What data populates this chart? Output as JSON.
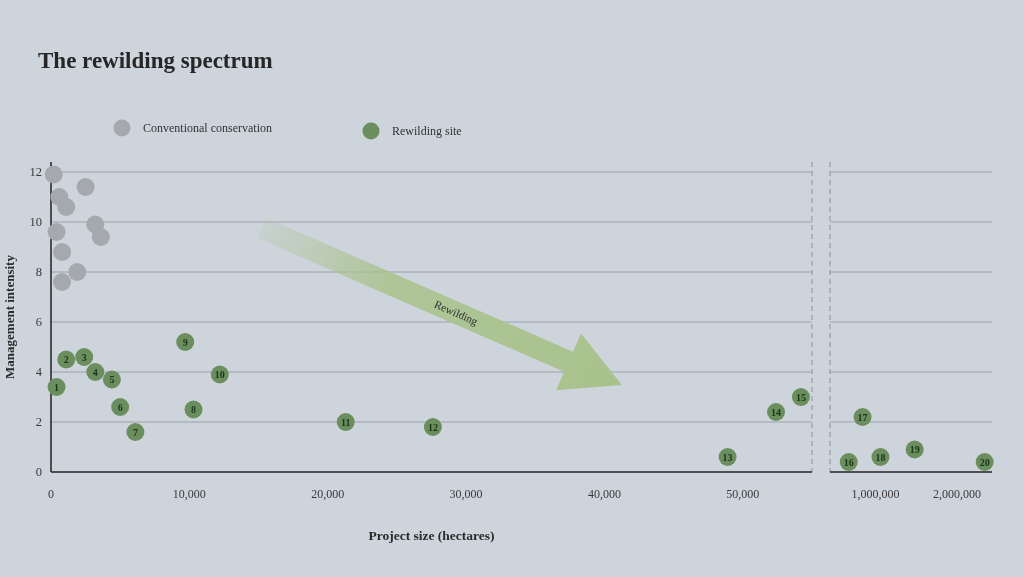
{
  "chart_data": [
    {
      "type": "scatter",
      "title": "The rewilding spectrum",
      "xlabel": "Project size (hectares)",
      "ylabel": "Management intensity",
      "annotations": [
        "Rewilding",
        {
          "text": "1",
          "x": 400,
          "y": 3.4
        },
        {
          "text": "2",
          "x": 1100,
          "y": 4.5
        },
        {
          "text": "3",
          "x": 2400,
          "y": 4.6
        },
        {
          "text": "4",
          "x": 3200,
          "y": 4.0
        },
        {
          "text": "5",
          "x": 4400,
          "y": 3.7
        },
        {
          "text": "6",
          "x": 5000,
          "y": 2.6
        },
        {
          "text": "7",
          "x": 6100,
          "y": 1.6
        },
        {
          "text": "8",
          "x": 10300,
          "y": 2.5
        },
        {
          "text": "9",
          "x": 9700,
          "y": 5.2
        },
        {
          "text": "10",
          "x": 12200,
          "y": 3.9
        },
        {
          "text": "11",
          "x": 21300,
          "y": 2.0
        },
        {
          "text": "12",
          "x": 27600,
          "y": 1.8
        },
        {
          "text": "13",
          "x": 48900,
          "y": 0.6
        },
        {
          "text": "14",
          "x": 52400,
          "y": 2.4
        },
        {
          "text": "15",
          "x": 54200,
          "y": 3.0
        }
      ],
      "xlim": [
        0,
        55000
      ],
      "xticks": [
        0,
        {
          "value": 10000,
          "label": "10,000"
        },
        {
          "value": 20000,
          "label": "20,000"
        },
        {
          "value": 30000,
          "label": "30,000"
        },
        {
          "value": 40000,
          "label": "40,000"
        },
        {
          "value": 50000,
          "label": "50,000"
        }
      ],
      "ylim": [
        0,
        12.4
      ],
      "yticks": [
        0,
        2,
        4,
        6,
        8,
        10,
        12
      ],
      "grid": "y",
      "legend": "top",
      "marker": "circle",
      "ref_lines": [
        {
          "axis": "x",
          "value": 55000,
          "line_style": "dashed",
          "color": "#8a9199"
        }
      ],
      "series": [
        {
          "name": "Conventional conservation",
          "color": "#a5a9ad",
          "x": [
            200,
            2500,
            600,
            1100,
            3200,
            400,
            3600,
            800,
            1900,
            800
          ],
          "values": [
            11.9,
            11.4,
            11.0,
            10.6,
            9.9,
            9.6,
            9.4,
            8.8,
            8.0,
            7.6
          ]
        },
        {
          "name": "Rewilding site",
          "color": "#6b8e5e",
          "x": [
            400,
            1100,
            2400,
            3200,
            4400,
            5000,
            6100,
            10300,
            9700,
            12200,
            21300,
            27600,
            48900,
            52400,
            54200
          ],
          "values": [
            3.4,
            4.5,
            4.6,
            4.0,
            3.7,
            2.6,
            1.6,
            2.5,
            5.2,
            3.9,
            2.0,
            1.8,
            0.6,
            2.4,
            3.0
          ]
        }
      ]
    },
    {
      "type": "scatter",
      "xlim": [
        440000,
        2430000
      ],
      "xticks": [
        {
          "value": 1000000,
          "label": "1,000,000"
        },
        {
          "value": 2000000,
          "label": "2,000,000"
        }
      ],
      "ylim": [
        0,
        12.4
      ],
      "yticks": [
        0,
        2,
        4,
        6,
        8,
        10,
        12
      ],
      "tick_labels": "x",
      "grid": "y",
      "marker": "circle",
      "annotations": [
        {
          "text": "16",
          "x": 670000,
          "y": 0.4
        },
        {
          "text": "17",
          "x": 840000,
          "y": 2.2
        },
        {
          "text": "18",
          "x": 1060000,
          "y": 0.6
        },
        {
          "text": "19",
          "x": 1480000,
          "y": 0.9
        },
        {
          "text": "20",
          "x": 2340000,
          "y": 0.4
        }
      ],
      "ref_lines": [
        {
          "axis": "x",
          "value": 440000,
          "line_style": "dashed",
          "color": "#8a9199"
        }
      ],
      "series": [
        {
          "color": "#6b8e5e",
          "x": [
            670000,
            840000,
            1060000,
            1480000,
            2340000
          ],
          "values": [
            0.4,
            2.2,
            0.6,
            0.9,
            0.4
          ]
        }
      ]
    }
  ]
}
